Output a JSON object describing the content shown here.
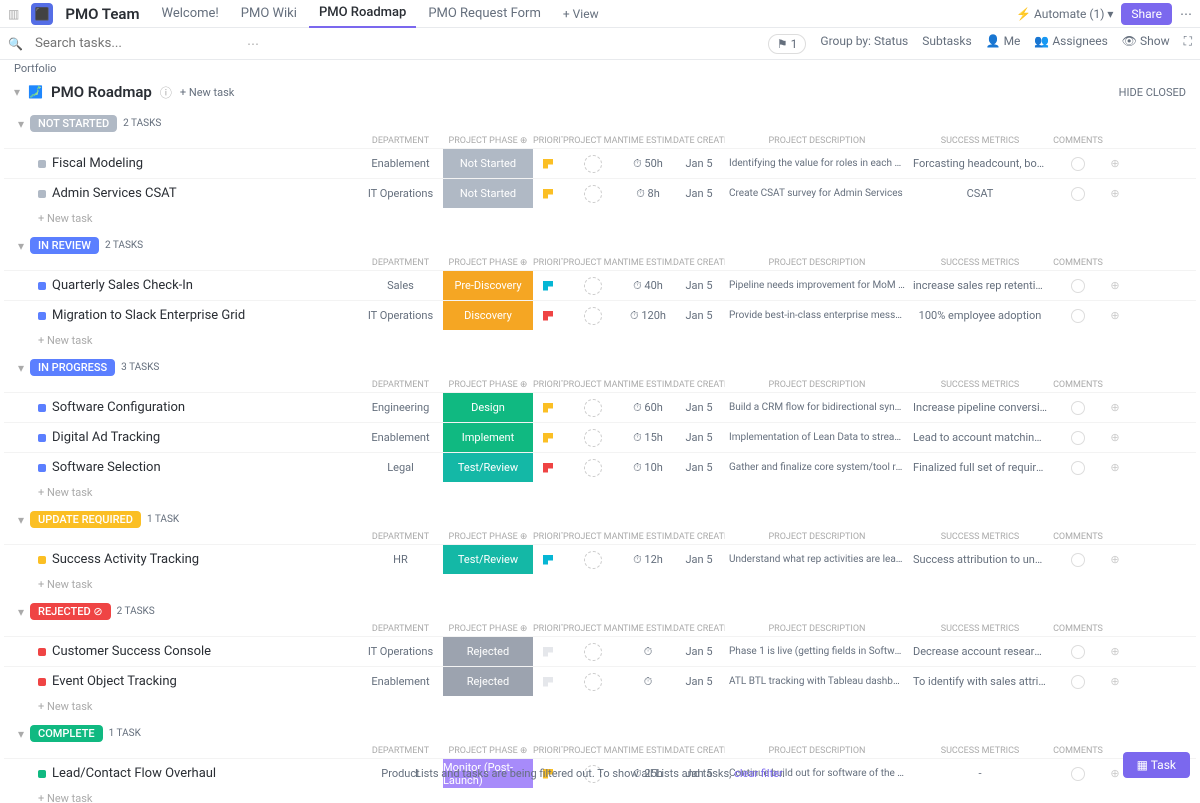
{
  "top": {
    "app_title": "PMO Team",
    "tabs": [
      {
        "label": "Welcome!",
        "active": false
      },
      {
        "label": "PMO Wiki",
        "active": false
      },
      {
        "label": "PMO Roadmap",
        "active": true
      },
      {
        "label": "PMO Request Form",
        "active": false
      }
    ],
    "view_btn": "View",
    "automate": "Automate",
    "automate_count": "(1)",
    "share": "Share"
  },
  "sub": {
    "search_placeholder": "Search tasks...",
    "breadcrumb": "Portfolio",
    "group_by": "Group by: Status",
    "controls": [
      "Subtasks",
      "Me",
      "Assignees",
      "Show"
    ]
  },
  "page": {
    "icon": "🗾",
    "title": "PMO Roadmap",
    "new_task": "+ New task",
    "hide_closed": "HIDE CLOSED"
  },
  "columns": [
    "",
    "DEPARTMENT",
    "PROJECT PHASE",
    "PRIORITY",
    "PROJECT MANAGER",
    "TIME ESTIMATE",
    "DATE CREATED",
    "PROJECT DESCRIPTION",
    "SUCCESS METRICS",
    "COMMENTS",
    ""
  ],
  "phase_colors": {
    "Not Started": "#b0b9c5",
    "Pre-Discovery": "#f5a623",
    "Discovery": "#f5a623",
    "Design": "#10b981",
    "Implement": "#10b981",
    "Test/Review": "#14b8a6",
    "Rejected": "#9ca3af",
    "Monitor (Post-Launch)": "#a78bfa"
  },
  "status_colors": {
    "NOT STARTED": "#b0b9c5",
    "IN REVIEW": "#5b7fff",
    "IN PROGRESS": "#5b7fff",
    "UPDATE REQUIRED": "#fbbf24",
    "REJECTED": "#ef4444",
    "COMPLETE": "#10b981"
  },
  "flag_colors": {
    "yellow": "#fbbf24",
    "cyan": "#06b6d4",
    "red": "#ef4444",
    "none": "#e5e7eb"
  },
  "dot_colors": {
    "gray": "#b0b9c5",
    "blue": "#5b7fff",
    "yellow": "#fbbf24",
    "red": "#ef4444",
    "green": "#10b981"
  },
  "groups": [
    {
      "status": "NOT STARTED",
      "count": "2 TASKS",
      "tasks": [
        {
          "name": "Fiscal Modeling",
          "dot": "gray",
          "dept": "Enablement",
          "phase": "Not Started",
          "flag": "yellow",
          "time": "50h",
          "date": "Jan 5",
          "desc": "Identifying the value for roles in each CX org",
          "metric": "Forcasting headcount, bottom line, CAC, C..."
        },
        {
          "name": "Admin Services CSAT",
          "dot": "gray",
          "dept": "IT Operations",
          "phase": "Not Started",
          "flag": "yellow",
          "time": "8h",
          "date": "Jan 5",
          "desc": "Create CSAT survey for Admin Services",
          "metric": "CSAT"
        }
      ]
    },
    {
      "status": "IN REVIEW",
      "count": "2 TASKS",
      "tasks": [
        {
          "name": "Quarterly Sales Check-In",
          "dot": "blue",
          "dept": "Sales",
          "phase": "Pre-Discovery",
          "flag": "cyan",
          "time": "40h",
          "date": "Jan 5",
          "desc": "Pipeline needs improvement for MoM and QoQ forecasting and quota attainment. SPIFF mgmt process...",
          "metric": "increase sales rep retention rates QoQ and ..."
        },
        {
          "name": "Migration to Slack Enterprise Grid",
          "dot": "blue",
          "dept": "IT Operations",
          "phase": "Discovery",
          "flag": "red",
          "time": "120h",
          "date": "Jan 5",
          "desc": "Provide best-in-class enterprise messaging platform opening access to a controlled a multi-instance env...",
          "metric": "100% employee adoption"
        }
      ]
    },
    {
      "status": "IN PROGRESS",
      "count": "3 TASKS",
      "tasks": [
        {
          "name": "Software Configuration",
          "dot": "blue",
          "dept": "Engineering",
          "phase": "Design",
          "flag": "yellow",
          "time": "60h",
          "date": "Jan 5",
          "desc": "Build a CRM flow for bidirectional sync to map required Software",
          "metric": "Increase pipeline conversion of new busines..."
        },
        {
          "name": "Digital Ad Tracking",
          "dot": "blue",
          "dept": "Enablement",
          "phase": "Implement",
          "flag": "yellow",
          "time": "15h",
          "date": "Jan 5",
          "desc": "Implementation of Lean Data to streamline and automate the lead routing capabilities.",
          "metric": "Lead to account matching and handling of f..."
        },
        {
          "name": "Software Selection",
          "dot": "blue",
          "dept": "Legal",
          "phase": "Test/Review",
          "flag": "red",
          "time": "10h",
          "date": "Jan 5",
          "desc": "Gather and finalize core system/tool requirements, MoSCoW capabilities, and acceptance criteria for C...",
          "metric": "Finalized full set of requirements for Vendo..."
        }
      ]
    },
    {
      "status": "UPDATE REQUIRED",
      "count": "1 TASK",
      "tasks": [
        {
          "name": "Success Activity Tracking",
          "dot": "yellow",
          "dept": "HR",
          "phase": "Test/Review",
          "flag": "cyan",
          "time": "12h",
          "date": "Jan 5",
          "desc": "Understand what rep activities are leading to retention and expansion within their book of accounts.",
          "metric": "Success attribution to understand customer..."
        }
      ]
    },
    {
      "status": "REJECTED",
      "count": "2 TASKS",
      "tasks": [
        {
          "name": "Customer Success Console",
          "dot": "red",
          "dept": "IT Operations",
          "phase": "Rejected",
          "flag": "none",
          "time": "",
          "date": "Jan 5",
          "desc": "Phase 1 is live (getting fields in Software). Phase 2: Automations requirements vs. vendor pur...",
          "metric": "Decrease account research time for CSMs ..."
        },
        {
          "name": "Event Object Tracking",
          "dot": "red",
          "dept": "Enablement",
          "phase": "Rejected",
          "flag": "none",
          "time": "",
          "date": "Jan 5",
          "desc": "ATL BTL tracking with Tableau dashboard and mapping to lead and contact objects",
          "metric": "To identify with sales attribution variables (..."
        }
      ]
    },
    {
      "status": "COMPLETE",
      "count": "1 TASK",
      "tasks": [
        {
          "name": "Lead/Contact Flow Overhaul",
          "dot": "green",
          "dept": "Product",
          "phase": "Monitor (Post-Launch)",
          "flag": "yellow",
          "time": "25h",
          "date": "Jan 5",
          "desc": "Continue build out for software of the lead and contact objects",
          "metric": "-"
        }
      ]
    }
  ],
  "footer": {
    "msg_pre": "Lists and tasks are being filtered out. To show all Lists and tasks, ",
    "clear": "clear filter",
    "msg_post": "."
  },
  "task_btn": "Task",
  "new_task_row": "+ New task"
}
